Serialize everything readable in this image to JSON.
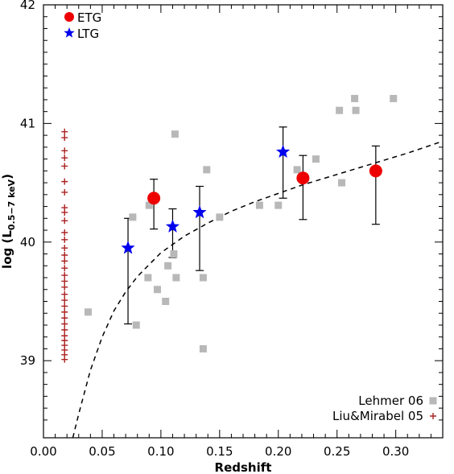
{
  "chart_data": {
    "type": "scatter",
    "xlabel": "Redshift",
    "ylabel_main": "log (L",
    "ylabel_sub": "0.5−7 keV",
    "ylabel_close": ")",
    "xlim": [
      0.0,
      0.34
    ],
    "ylim": [
      38.35,
      42.0
    ],
    "xticks": [
      "0.00",
      "0.05",
      "0.10",
      "0.15",
      "0.20",
      "0.25",
      "0.30"
    ],
    "xtick_values": [
      0.0,
      0.05,
      0.1,
      0.15,
      0.2,
      0.25,
      0.3
    ],
    "yticks": [
      "39",
      "40",
      "41",
      "42"
    ],
    "ytick_values": [
      39,
      40,
      41,
      42
    ],
    "legend_top": [
      {
        "label": "ETG",
        "marker": "circle",
        "color": "#ee0000"
      },
      {
        "label": "LTG",
        "marker": "star",
        "color": "#0000ee"
      }
    ],
    "legend_bottom": [
      {
        "label": "Lehmer 06",
        "marker": "square",
        "color": "#b8b8b8"
      },
      {
        "label": "Liu&Mirabel 05",
        "marker": "plus",
        "color": "#aa2222"
      }
    ],
    "series": [
      {
        "name": "ETG",
        "marker": "circle",
        "color": "#ee0000",
        "points": [
          {
            "x": 0.094,
            "y": 40.37,
            "ylo": 40.11,
            "yhi": 40.53
          },
          {
            "x": 0.221,
            "y": 40.54,
            "ylo": 40.19,
            "yhi": 40.73
          },
          {
            "x": 0.283,
            "y": 40.6,
            "ylo": 40.15,
            "yhi": 40.81
          }
        ]
      },
      {
        "name": "LTG",
        "marker": "star",
        "color": "#0000ee",
        "points": [
          {
            "x": 0.072,
            "y": 39.95,
            "ylo": 39.31,
            "yhi": 40.2
          },
          {
            "x": 0.11,
            "y": 40.13,
            "ylo": 39.87,
            "yhi": 40.28
          },
          {
            "x": 0.133,
            "y": 40.25,
            "ylo": 39.76,
            "yhi": 40.47
          },
          {
            "x": 0.204,
            "y": 40.76,
            "ylo": 40.37,
            "yhi": 40.97
          }
        ]
      },
      {
        "name": "Lehmer 06",
        "marker": "square",
        "color": "#b8b8b8",
        "points": [
          {
            "x": 0.038,
            "y": 39.41
          },
          {
            "x": 0.076,
            "y": 40.21
          },
          {
            "x": 0.079,
            "y": 39.3
          },
          {
            "x": 0.089,
            "y": 39.7
          },
          {
            "x": 0.09,
            "y": 40.31
          },
          {
            "x": 0.097,
            "y": 39.6
          },
          {
            "x": 0.104,
            "y": 39.5
          },
          {
            "x": 0.106,
            "y": 39.8
          },
          {
            "x": 0.111,
            "y": 39.9
          },
          {
            "x": 0.112,
            "y": 40.91
          },
          {
            "x": 0.113,
            "y": 39.7
          },
          {
            "x": 0.136,
            "y": 39.7
          },
          {
            "x": 0.136,
            "y": 39.1
          },
          {
            "x": 0.139,
            "y": 40.61
          },
          {
            "x": 0.15,
            "y": 40.21
          },
          {
            "x": 0.184,
            "y": 40.31
          },
          {
            "x": 0.2,
            "y": 40.31
          },
          {
            "x": 0.216,
            "y": 40.61
          },
          {
            "x": 0.232,
            "y": 40.7
          },
          {
            "x": 0.252,
            "y": 41.11
          },
          {
            "x": 0.254,
            "y": 40.5
          },
          {
            "x": 0.265,
            "y": 41.21
          },
          {
            "x": 0.266,
            "y": 41.11
          },
          {
            "x": 0.298,
            "y": 41.21
          }
        ]
      },
      {
        "name": "Liu&Mirabel 05",
        "marker": "plus",
        "color": "#aa2222",
        "points": [
          {
            "x": 0.018,
            "y": 40.93
          },
          {
            "x": 0.018,
            "y": 40.88
          },
          {
            "x": 0.018,
            "y": 40.77
          },
          {
            "x": 0.018,
            "y": 40.71
          },
          {
            "x": 0.018,
            "y": 40.64
          },
          {
            "x": 0.018,
            "y": 40.51
          },
          {
            "x": 0.018,
            "y": 40.42
          },
          {
            "x": 0.018,
            "y": 40.29
          },
          {
            "x": 0.018,
            "y": 40.25
          },
          {
            "x": 0.018,
            "y": 40.18
          },
          {
            "x": 0.018,
            "y": 40.08
          },
          {
            "x": 0.018,
            "y": 40.02
          },
          {
            "x": 0.018,
            "y": 39.95
          },
          {
            "x": 0.018,
            "y": 39.89
          },
          {
            "x": 0.018,
            "y": 39.84
          },
          {
            "x": 0.018,
            "y": 39.78
          },
          {
            "x": 0.018,
            "y": 39.72
          },
          {
            "x": 0.018,
            "y": 39.67
          },
          {
            "x": 0.018,
            "y": 39.62
          },
          {
            "x": 0.018,
            "y": 39.56
          },
          {
            "x": 0.018,
            "y": 39.51
          },
          {
            "x": 0.018,
            "y": 39.46
          },
          {
            "x": 0.018,
            "y": 39.41
          },
          {
            "x": 0.018,
            "y": 39.36
          },
          {
            "x": 0.018,
            "y": 39.31
          },
          {
            "x": 0.018,
            "y": 39.26
          },
          {
            "x": 0.018,
            "y": 39.21
          },
          {
            "x": 0.018,
            "y": 39.17
          },
          {
            "x": 0.018,
            "y": 39.13
          },
          {
            "x": 0.018,
            "y": 39.09
          },
          {
            "x": 0.018,
            "y": 39.05
          },
          {
            "x": 0.018,
            "y": 39.01
          }
        ]
      }
    ],
    "curve": {
      "style": "dashed",
      "color": "#000000",
      "x": [
        0.025,
        0.03,
        0.04,
        0.05,
        0.06,
        0.07,
        0.08,
        0.1,
        0.12,
        0.14,
        0.16,
        0.18,
        0.2,
        0.22,
        0.25,
        0.28,
        0.31,
        0.34
      ],
      "y": [
        38.35,
        38.55,
        38.92,
        39.2,
        39.42,
        39.58,
        39.71,
        39.91,
        40.05,
        40.16,
        40.26,
        40.34,
        40.41,
        40.48,
        40.57,
        40.66,
        40.75,
        40.85
      ]
    }
  }
}
